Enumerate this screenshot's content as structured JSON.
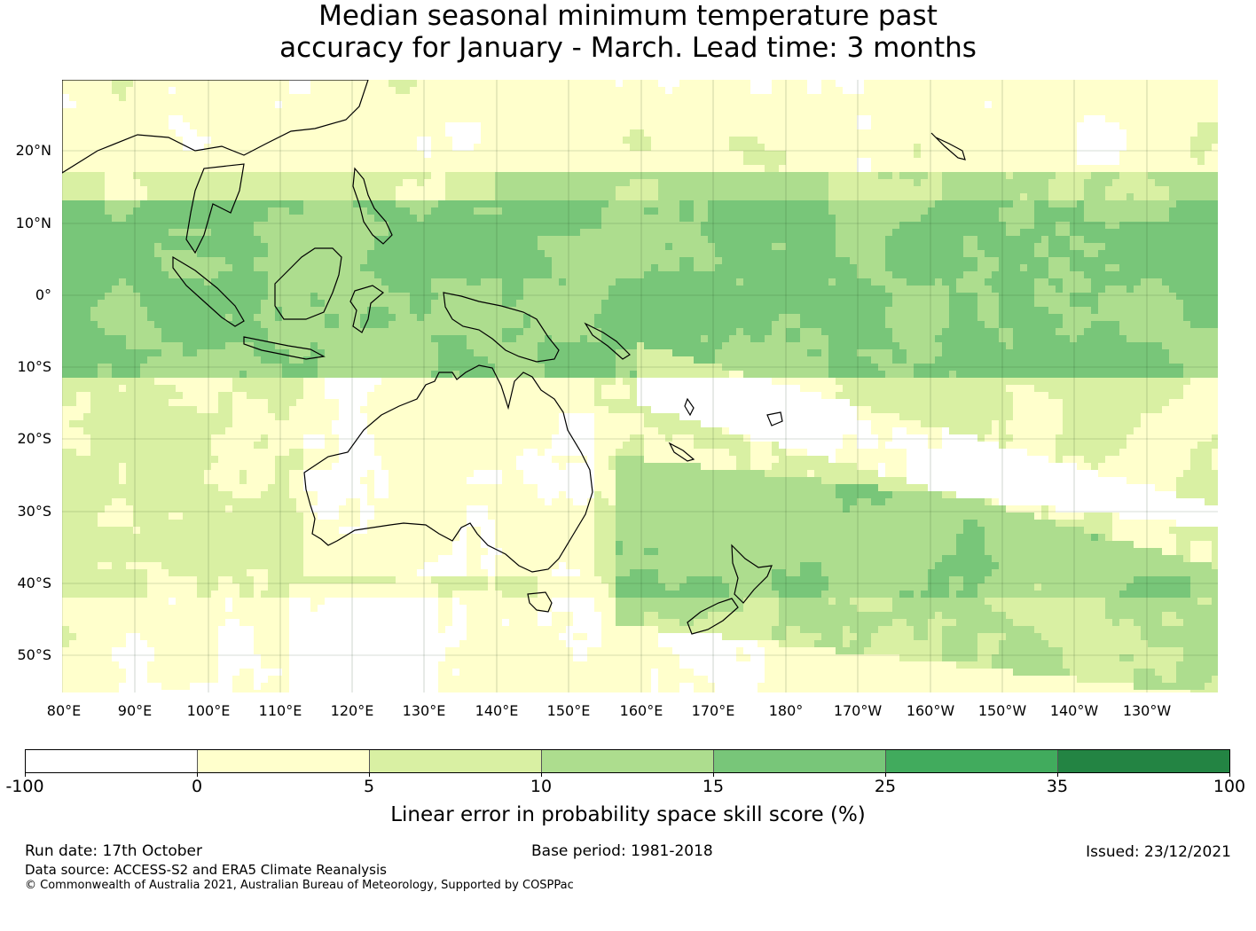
{
  "title": {
    "line1": "Median seasonal minimum temperature past",
    "line2": "accuracy for January - March. Lead time: 3 months"
  },
  "map": {
    "lat_labels": [
      "20°N",
      "10°N",
      "0°",
      "10°S",
      "20°S",
      "30°S",
      "40°S",
      "50°S"
    ],
    "lon_labels": [
      "80°E",
      "90°E",
      "100°E",
      "110°E",
      "120°E",
      "130°E",
      "140°E",
      "150°E",
      "160°E",
      "170°E",
      "180°",
      "170°W",
      "160°W",
      "150°W",
      "140°W",
      "130°W"
    ],
    "land_outline_color": "#000000",
    "grid_color": "#1a3a1a"
  },
  "legend": {
    "ticks": [
      "-100",
      "0",
      "5",
      "10",
      "15",
      "25",
      "35",
      "100"
    ],
    "colors": [
      "#ffffff",
      "#ffffcc",
      "#d9f0a3",
      "#addd8e",
      "#78c679",
      "#41ab5d",
      "#238443"
    ],
    "title": "Linear error in probability space skill score (%)"
  },
  "footer": {
    "run_date": "Run date: 17th October",
    "base_period": "Base period: 1981-2018",
    "issued": "Issued: 23/12/2021",
    "data_source": "Data source: ACCESS-S2 and ERA5 Climate Reanalysis",
    "copyright": "© Commonwealth of Australia 2021, Australian Bureau of Meteorology, Supported by COSPPac"
  }
}
